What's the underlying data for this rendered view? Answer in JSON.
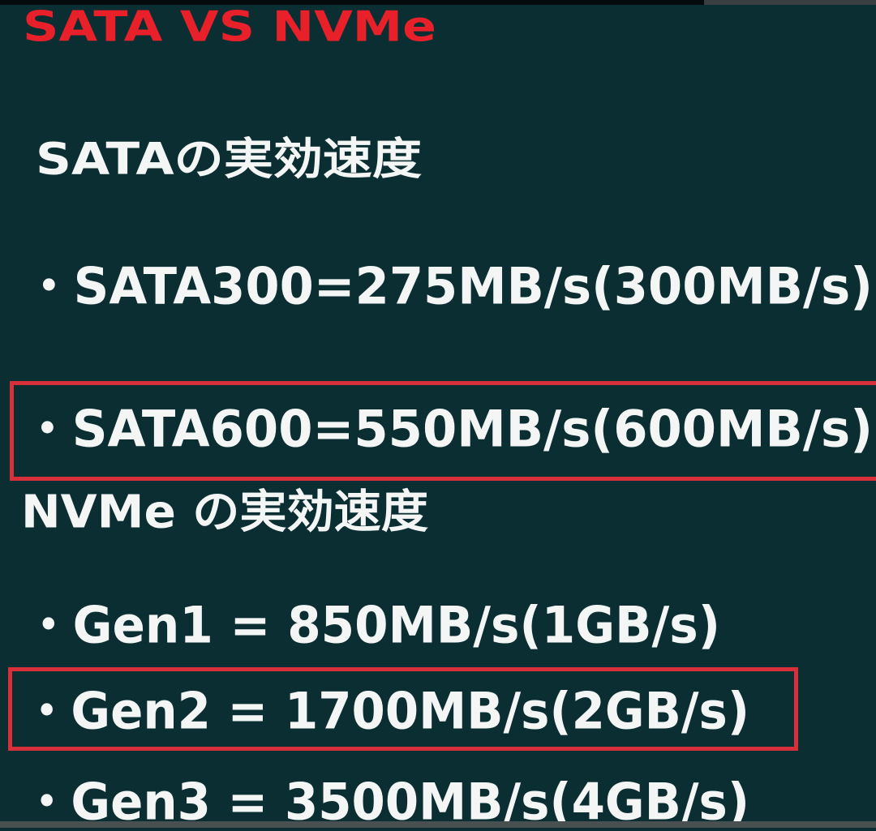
{
  "slide": {
    "title": "SATA VS NVMe",
    "sata_heading": "SATAの実効速度",
    "sata_items": [
      "・SATA300=275MB/s(300MB/s)",
      "・SATA600=550MB/s(600MB/s)"
    ],
    "nvme_heading": "NVMe の実効速度",
    "nvme_items": [
      "・Gen1 = 850MB/s(1GB/s)",
      "・Gen2 = 1700MB/s(2GB/s)",
      "・Gen3 = 3500MB/s(4GB/s)"
    ],
    "highlighted": [
      "・SATA600=550MB/s(600MB/s)",
      "・Gen2 = 1700MB/s(2GB/s)"
    ]
  },
  "colors": {
    "background": "#0b2e32",
    "title": "#e8202a",
    "text": "#f4f6f6",
    "highlight_box": "#d8303a"
  }
}
